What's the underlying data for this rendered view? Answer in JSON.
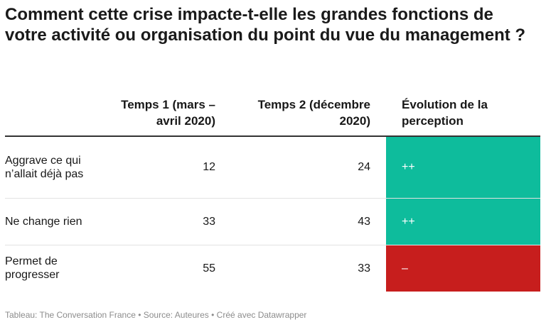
{
  "title": "Comment cette crise impacte-t-elle les grandes fonctions de votre activité ou organisation du point du vue du management ?",
  "chart_data": {
    "type": "table",
    "columns": [
      "",
      "Temps 1 (mars – avril 2020)",
      "Temps 2 (décembre 2020)",
      "Évolution de la perception"
    ],
    "rows": [
      {
        "label": "Aggrave ce qui n’allait déjà pas",
        "t1": "12",
        "t2": "24",
        "evolution": "++",
        "color": "#0ebc9c"
      },
      {
        "label": "Ne change rien",
        "t1": "33",
        "t2": "43",
        "evolution": "++",
        "color": "#0ebc9c"
      },
      {
        "label": "Permet de progresser",
        "t1": "55",
        "t2": "33",
        "evolution": "–",
        "color": "#c71e1d"
      }
    ]
  },
  "footer": "Tableau: The Conversation France • Source: Auteures • Créé avec Datawrapper"
}
